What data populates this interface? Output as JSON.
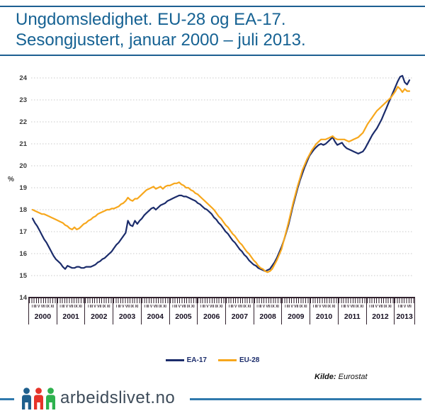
{
  "header": {
    "line1": "Ungdomsledighet. EU-28 og EA-17.",
    "line2": "Sesongjustert, januar 2000 – juli 2013."
  },
  "chart_data": {
    "type": "line",
    "title": "Ungdomsledighet. EU-28 og EA-17. Sesongjustert, januar 2000 – juli 2013.",
    "ylabel": "%",
    "ylim": [
      14,
      24
    ],
    "yticks": [
      14,
      15,
      16,
      17,
      18,
      19,
      20,
      21,
      22,
      23,
      24
    ],
    "grid": "horizontal-dotted",
    "legend_position": "bottom-center",
    "x_unit": "month",
    "x_start": "2000-01",
    "x_end": "2013-07",
    "years": [
      "2000",
      "2001",
      "2002",
      "2003",
      "2004",
      "2005",
      "2006",
      "2007",
      "2008",
      "2009",
      "2010",
      "2011",
      "2012",
      "2013"
    ],
    "months_per_year": [
      12,
      12,
      12,
      12,
      12,
      12,
      12,
      12,
      12,
      12,
      12,
      12,
      12,
      7
    ],
    "month_tick_labels_full": "I III V VII IX XI",
    "month_tick_labels_2013": "I III V VII",
    "series": [
      {
        "name": "EA-17",
        "color": "#1b2c6b",
        "values": [
          17.6,
          17.4,
          17.25,
          17.05,
          16.85,
          16.65,
          16.5,
          16.3,
          16.1,
          15.9,
          15.75,
          15.65,
          15.55,
          15.4,
          15.3,
          15.45,
          15.4,
          15.35,
          15.35,
          15.4,
          15.4,
          15.35,
          15.35,
          15.4,
          15.4,
          15.4,
          15.45,
          15.5,
          15.6,
          15.65,
          15.75,
          15.8,
          15.9,
          16.0,
          16.1,
          16.25,
          16.4,
          16.5,
          16.65,
          16.8,
          16.95,
          17.5,
          17.3,
          17.25,
          17.5,
          17.35,
          17.5,
          17.6,
          17.75,
          17.85,
          17.95,
          18.05,
          18.1,
          18.0,
          18.1,
          18.2,
          18.25,
          18.3,
          18.4,
          18.45,
          18.5,
          18.55,
          18.6,
          18.65,
          18.65,
          18.6,
          18.6,
          18.55,
          18.5,
          18.45,
          18.4,
          18.3,
          18.25,
          18.15,
          18.05,
          18.0,
          17.9,
          17.8,
          17.65,
          17.55,
          17.4,
          17.3,
          17.15,
          17.0,
          16.9,
          16.75,
          16.6,
          16.5,
          16.35,
          16.2,
          16.1,
          15.95,
          15.85,
          15.7,
          15.6,
          15.5,
          15.45,
          15.35,
          15.3,
          15.25,
          15.2,
          15.25,
          15.3,
          15.45,
          15.6,
          15.8,
          16.05,
          16.3,
          16.6,
          16.95,
          17.3,
          17.75,
          18.2,
          18.6,
          19.0,
          19.35,
          19.65,
          19.95,
          20.2,
          20.45,
          20.6,
          20.75,
          20.85,
          20.95,
          21.0,
          20.95,
          21.0,
          21.1,
          21.2,
          21.3,
          21.1,
          20.95,
          21.0,
          21.05,
          20.9,
          20.8,
          20.75,
          20.7,
          20.65,
          20.6,
          20.55,
          20.6,
          20.65,
          20.8,
          21.0,
          21.2,
          21.4,
          21.55,
          21.7,
          21.9,
          22.1,
          22.35,
          22.6,
          22.85,
          23.1,
          23.35,
          23.6,
          23.85,
          24.05,
          24.1,
          23.8,
          23.7,
          23.9
        ]
      },
      {
        "name": "EU-28",
        "color": "#f7a71c",
        "values": [
          18.0,
          17.95,
          17.9,
          17.85,
          17.8,
          17.8,
          17.75,
          17.7,
          17.65,
          17.6,
          17.55,
          17.5,
          17.45,
          17.4,
          17.3,
          17.25,
          17.15,
          17.1,
          17.2,
          17.1,
          17.15,
          17.25,
          17.35,
          17.4,
          17.5,
          17.55,
          17.65,
          17.7,
          17.8,
          17.85,
          17.9,
          17.95,
          18.0,
          18.0,
          18.05,
          18.05,
          18.1,
          18.15,
          18.25,
          18.3,
          18.4,
          18.55,
          18.45,
          18.4,
          18.5,
          18.5,
          18.6,
          18.7,
          18.8,
          18.9,
          18.95,
          19.0,
          19.05,
          18.95,
          19.0,
          19.05,
          18.95,
          19.05,
          19.1,
          19.1,
          19.15,
          19.2,
          19.2,
          19.25,
          19.15,
          19.1,
          19.0,
          19.0,
          18.9,
          18.85,
          18.75,
          18.7,
          18.6,
          18.5,
          18.4,
          18.3,
          18.2,
          18.1,
          18.0,
          17.85,
          17.7,
          17.6,
          17.45,
          17.3,
          17.2,
          17.05,
          16.9,
          16.8,
          16.65,
          16.5,
          16.4,
          16.25,
          16.1,
          16.0,
          15.85,
          15.7,
          15.6,
          15.45,
          15.35,
          15.3,
          15.2,
          15.15,
          15.2,
          15.3,
          15.5,
          15.7,
          15.95,
          16.2,
          16.6,
          17.0,
          17.4,
          17.85,
          18.3,
          18.7,
          19.1,
          19.45,
          19.8,
          20.05,
          20.3,
          20.5,
          20.7,
          20.85,
          21.0,
          21.1,
          21.2,
          21.2,
          21.2,
          21.25,
          21.3,
          21.35,
          21.25,
          21.2,
          21.2,
          21.2,
          21.2,
          21.15,
          21.1,
          21.15,
          21.2,
          21.25,
          21.3,
          21.4,
          21.5,
          21.7,
          21.9,
          22.05,
          22.2,
          22.35,
          22.5,
          22.6,
          22.7,
          22.8,
          22.9,
          23.0,
          23.1,
          23.25,
          23.4,
          23.6,
          23.5,
          23.35,
          23.5,
          23.4,
          23.4
        ]
      }
    ]
  },
  "source": {
    "label": "Kilde:",
    "value": "Eurostat"
  },
  "footer": {
    "brand": "arbeidslivet.no",
    "icon_colors": {
      "person_blue": "#1e5f8d",
      "person_red": "#e63329",
      "person_green": "#2eb14e"
    },
    "line_color": "#3079ad"
  },
  "colors": {
    "title_text": "#166293",
    "header_rule": "#1d5f91",
    "gridline": "#c9c9c9",
    "axis_text": "#3b3b3b",
    "ruler": "#32222e"
  }
}
